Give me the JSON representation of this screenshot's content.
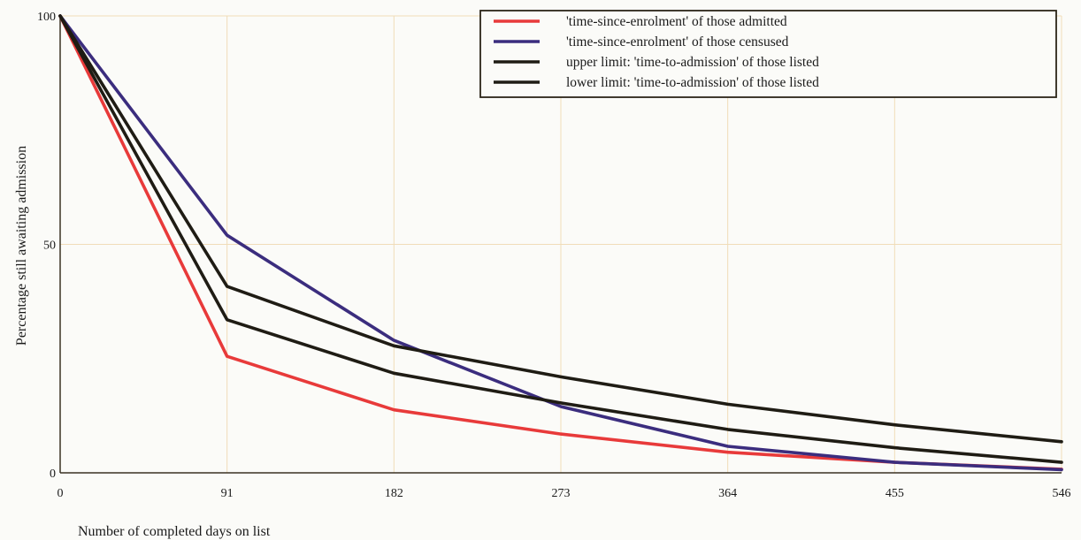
{
  "chart_data": {
    "type": "line",
    "xlabel": "Number of completed days on list",
    "ylabel": "Percentage still awaiting admission",
    "x": [
      0,
      91,
      182,
      273,
      364,
      455,
      546
    ],
    "xlim": [
      0,
      546
    ],
    "ylim": [
      0,
      100
    ],
    "x_ticks": [
      "0",
      "91",
      "182",
      "273",
      "364",
      "455",
      "546"
    ],
    "y_ticks": [
      "0",
      "50",
      "100"
    ],
    "grid": true,
    "legend_position": "top-right",
    "series": [
      {
        "name": "'time-since-enrolment' of those admitted",
        "color": "#e83a3a",
        "values": [
          100,
          25.5,
          13.8,
          8.5,
          4.5,
          2.3,
          0.8
        ]
      },
      {
        "name": "'time-since-enrolment' of those censused",
        "color": "#3b2d7e",
        "values": [
          100,
          52,
          29,
          14.5,
          5.8,
          2.3,
          0.7
        ]
      },
      {
        "name": "upper limit:  'time-to-admission' of those listed",
        "color": "#1f1c14",
        "values": [
          100,
          40.8,
          27.8,
          21,
          15,
          10.5,
          6.8
        ]
      },
      {
        "name": "lower limit:  'time-to-admission' of those listed",
        "color": "#1f1c14",
        "values": [
          100,
          33.5,
          21.8,
          15.3,
          9.5,
          5.5,
          2.3
        ]
      }
    ]
  }
}
